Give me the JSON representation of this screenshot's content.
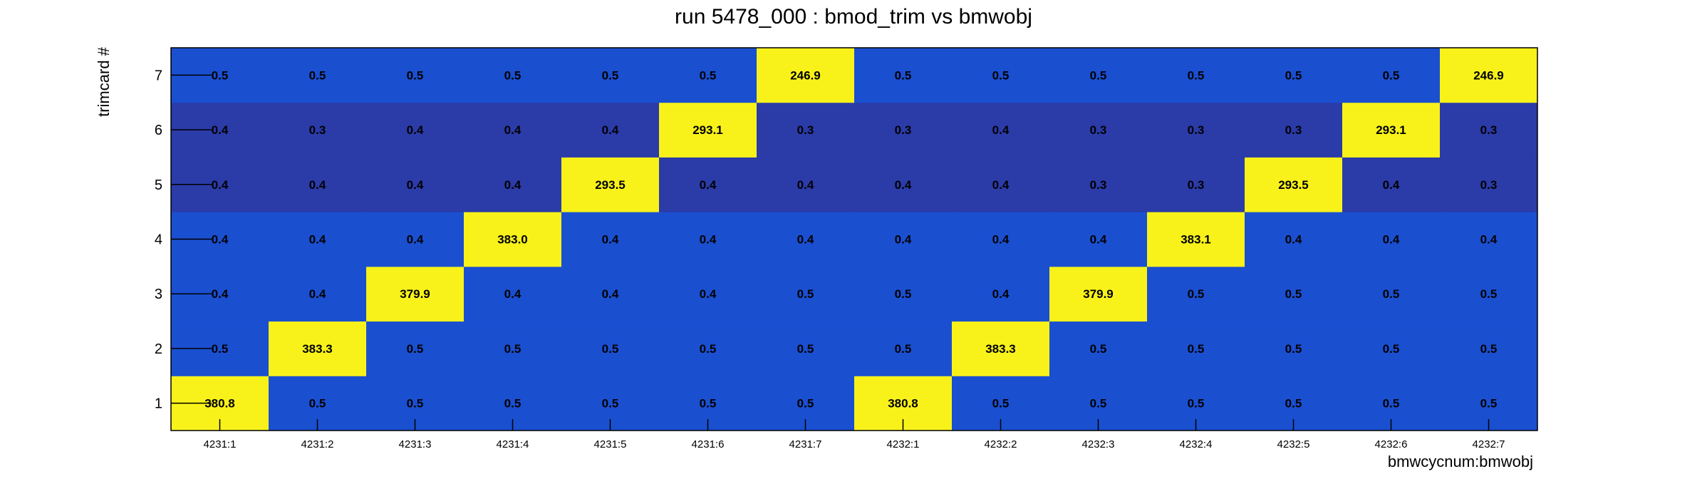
{
  "chart_data": {
    "type": "heatmap",
    "title": "run 5478_000 : bmod_trim vs bmwobj",
    "xlabel": "bmwcycnum:bmwobj",
    "ylabel": "trimcard #",
    "x_categories": [
      "4231:1",
      "4231:2",
      "4231:3",
      "4231:4",
      "4231:5",
      "4231:6",
      "4231:7",
      "4232:1",
      "4232:2",
      "4232:3",
      "4232:4",
      "4232:5",
      "4232:6",
      "4232:7"
    ],
    "y_categories": [
      "1",
      "2",
      "3",
      "4",
      "5",
      "6",
      "7"
    ],
    "values": [
      [
        "380.8",
        "0.5",
        "0.5",
        "0.5",
        "0.5",
        "0.5",
        "0.5",
        "380.8",
        "0.5",
        "0.5",
        "0.5",
        "0.5",
        "0.5",
        "0.5"
      ],
      [
        "0.5",
        "383.3",
        "0.5",
        "0.5",
        "0.5",
        "0.5",
        "0.5",
        "0.5",
        "383.3",
        "0.5",
        "0.5",
        "0.5",
        "0.5",
        "0.5"
      ],
      [
        "0.4",
        "0.4",
        "379.9",
        "0.4",
        "0.4",
        "0.4",
        "0.5",
        "0.5",
        "0.4",
        "379.9",
        "0.5",
        "0.5",
        "0.5",
        "0.5"
      ],
      [
        "0.4",
        "0.4",
        "0.4",
        "383.0",
        "0.4",
        "0.4",
        "0.4",
        "0.4",
        "0.4",
        "0.4",
        "383.1",
        "0.4",
        "0.4",
        "0.4"
      ],
      [
        "0.4",
        "0.4",
        "0.4",
        "0.4",
        "293.5",
        "0.4",
        "0.4",
        "0.4",
        "0.4",
        "0.3",
        "0.3",
        "293.5",
        "0.4",
        "0.3"
      ],
      [
        "0.4",
        "0.3",
        "0.4",
        "0.4",
        "0.4",
        "293.1",
        "0.3",
        "0.3",
        "0.4",
        "0.3",
        "0.3",
        "0.3",
        "293.1",
        "0.3"
      ],
      [
        "0.5",
        "0.5",
        "0.5",
        "0.5",
        "0.5",
        "0.5",
        "246.9",
        "0.5",
        "0.5",
        "0.5",
        "0.5",
        "0.5",
        "0.5",
        "246.9"
      ]
    ],
    "colors": {
      "low_dark": "#2b3ba8",
      "low": "#1a4fd0",
      "high": "#f8f21a"
    }
  }
}
